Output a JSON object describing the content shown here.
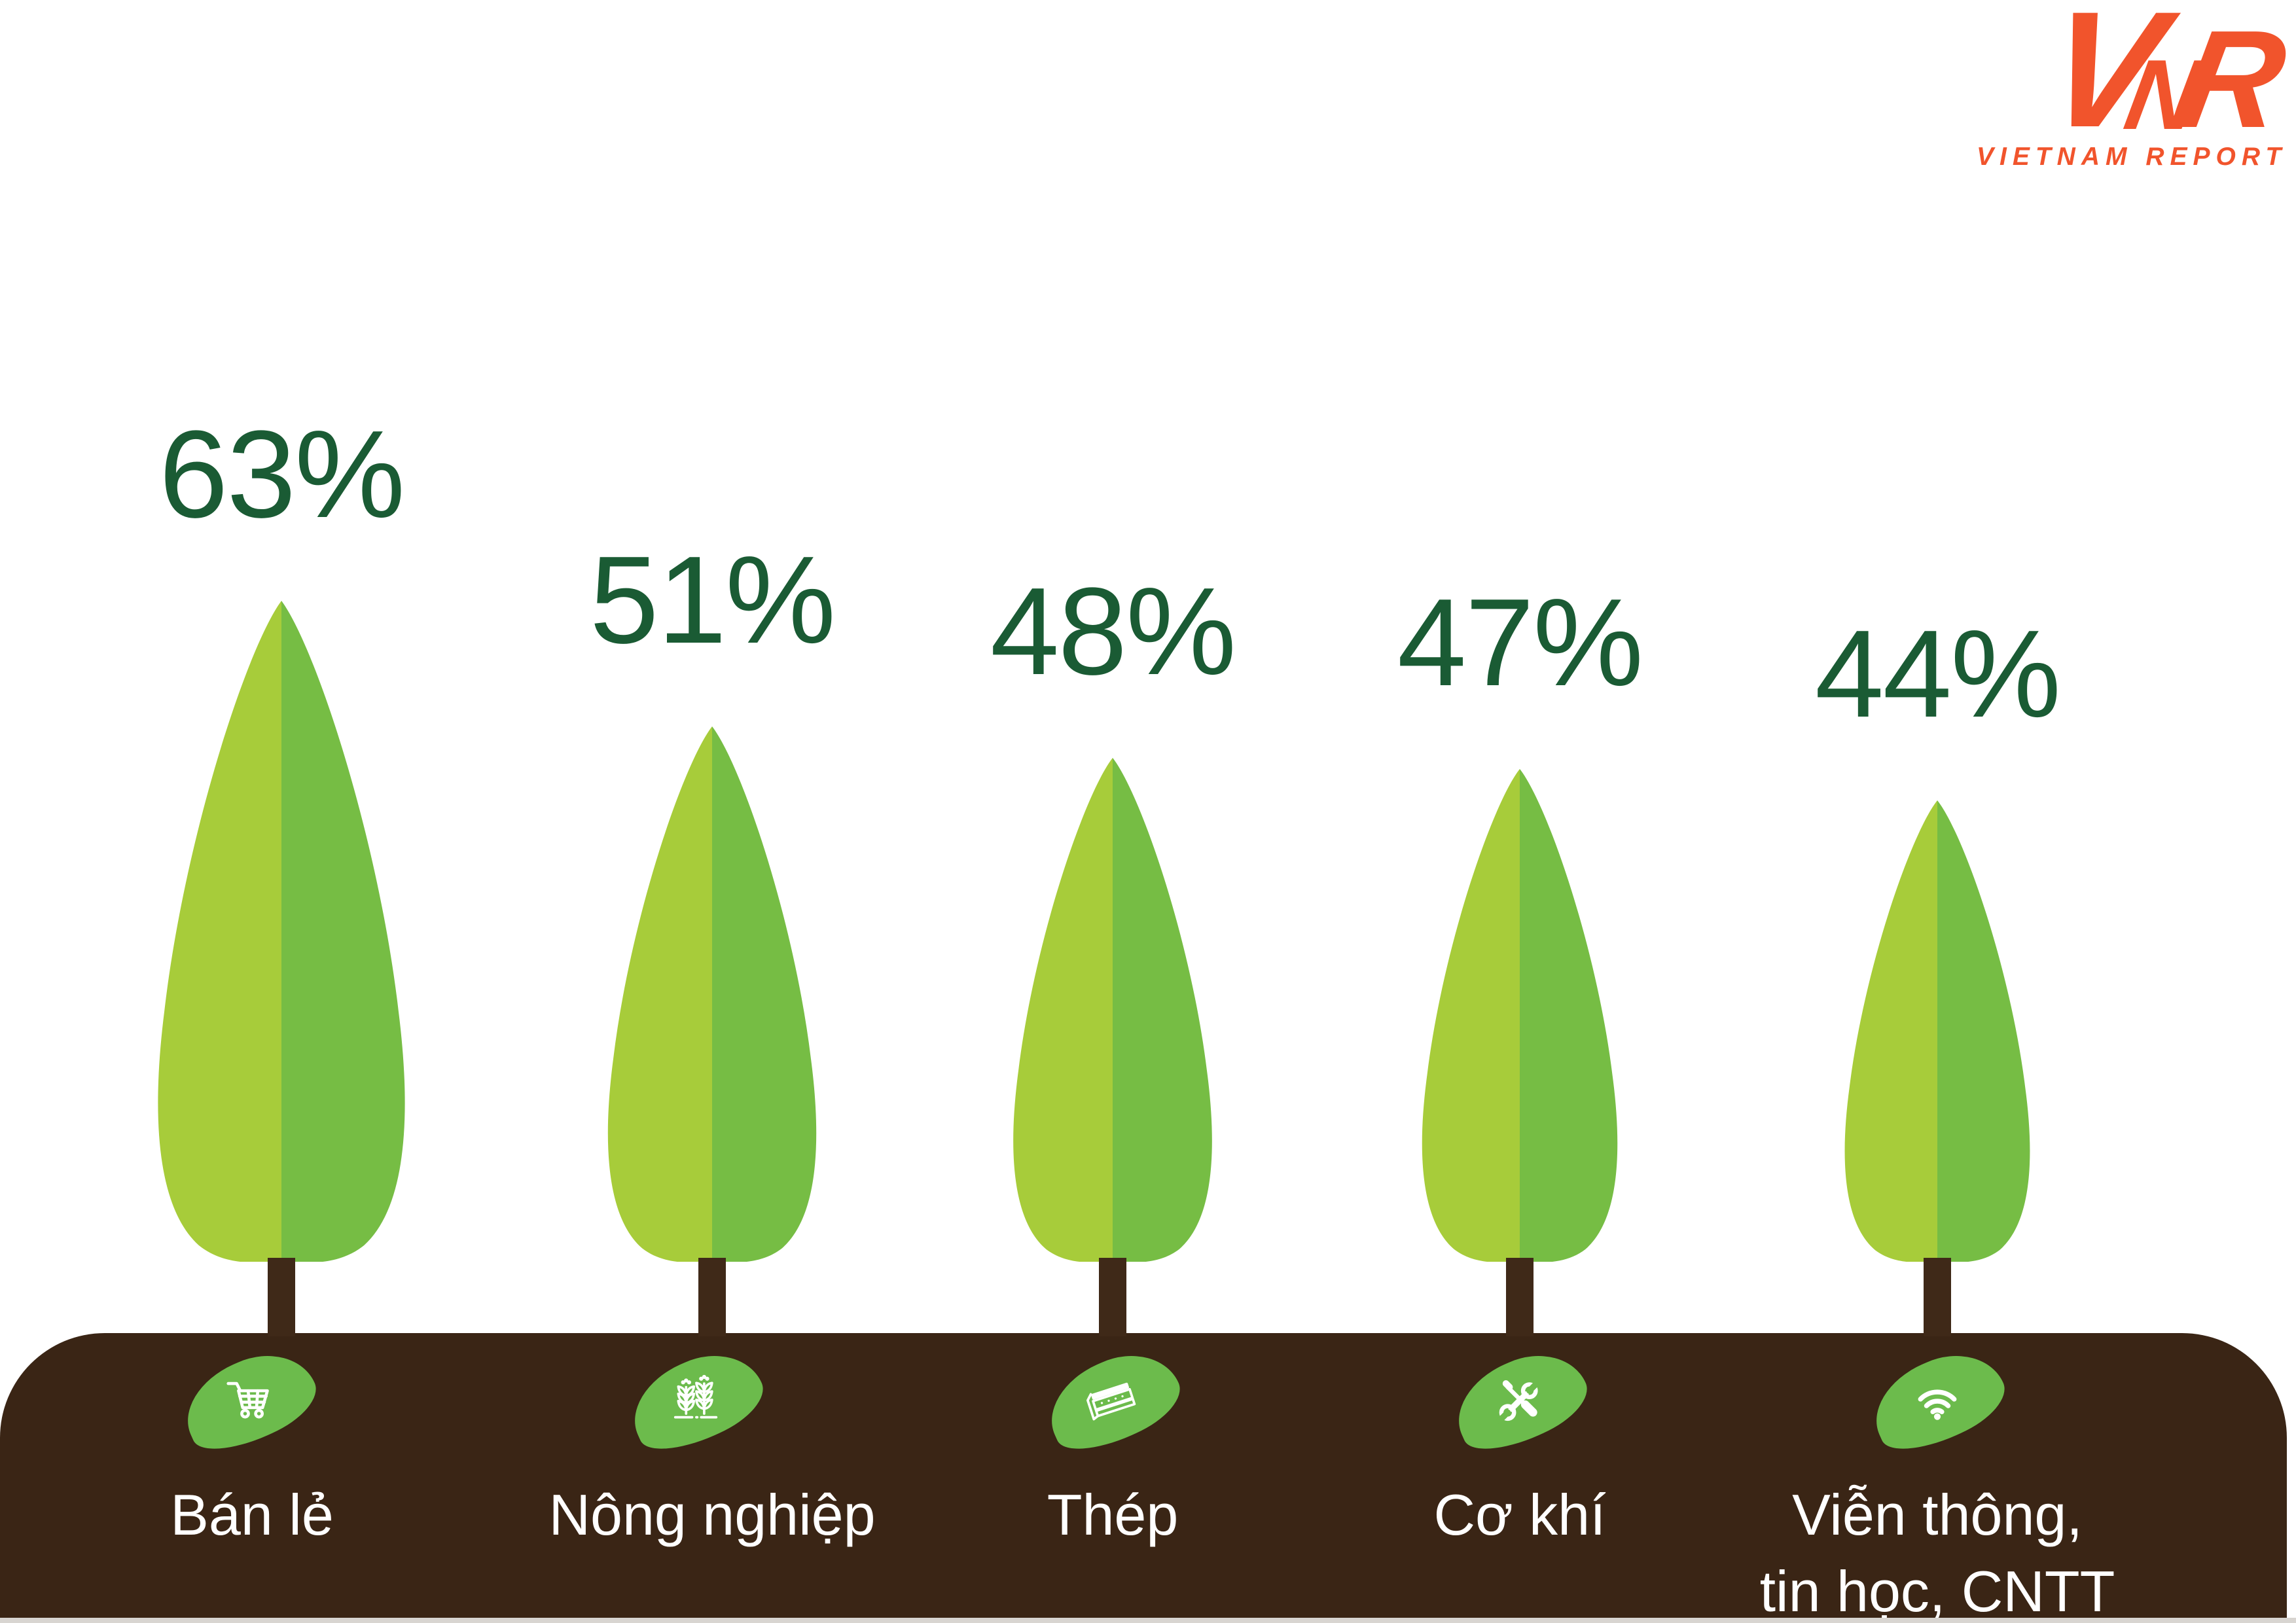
{
  "logo": {
    "v": "V",
    "n": "N",
    "r": "R",
    "caption": "VIETNAM REPORT",
    "color": "#F1542C"
  },
  "colors": {
    "tree_light_green": "#A7CC3A",
    "tree_dark_green": "#76BD44",
    "bean_green": "#6CBB4C",
    "percent_text_green": "#1A5B34",
    "ground_brown": "#3A2515",
    "trunk_brown": "#3F2918",
    "label_white": "#FFFFFF",
    "logo_orange": "#F1542C"
  },
  "chart_data": {
    "type": "bar",
    "style": "pictorial-trees",
    "title": "",
    "categories": [
      "Bán lẻ",
      "Nông nghiệp",
      "Thép",
      "Cơ khí",
      "Viễn thông, tin học, CNTT"
    ],
    "values": [
      63,
      51,
      48,
      47,
      44
    ],
    "unit": "%",
    "value_labels": [
      "63%",
      "51%",
      "48%",
      "47%",
      "44%"
    ],
    "ylim": [
      0,
      100
    ],
    "grid": false,
    "legend_position": "none"
  },
  "sectors": [
    {
      "percent": "63%",
      "value": 63,
      "label": "Bán lẻ",
      "label_line2": "",
      "icon": "shopping-cart-icon"
    },
    {
      "percent": "51%",
      "value": 51,
      "label": "Nông nghiệp",
      "label_line2": "",
      "icon": "wheat-icon"
    },
    {
      "percent": "48%",
      "value": 48,
      "label": "Thép",
      "label_line2": "",
      "icon": "steel-beam-icon"
    },
    {
      "percent": "47%",
      "value": 47,
      "label": "Cơ khí",
      "label_line2": "",
      "icon": "wrench-screwdriver-icon"
    },
    {
      "percent": "44%",
      "value": 44,
      "label": "Viễn thông,",
      "label_line2": "tin học, CNTT",
      "icon": "wifi-icon"
    }
  ]
}
